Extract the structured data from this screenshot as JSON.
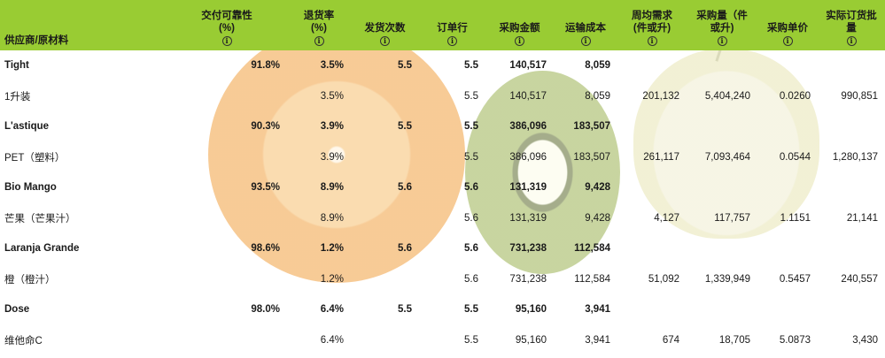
{
  "colors": {
    "header_bg": "#99cc33",
    "text": "#1a1a1a"
  },
  "header": {
    "col0": "供应商/原材料",
    "col1a": "交付可靠性",
    "col1b": "(%)",
    "col2a": "退货率",
    "col2b": "(%)",
    "col3": "发货次数",
    "col4": "订单行",
    "col5": "采购金额",
    "col6": "运输成本",
    "col7a": "周均需求",
    "col7b": "(件或升)",
    "col8a": "采购量（件",
    "col8b": "或升)",
    "col9": "采购单价",
    "col10a": "实际订货批",
    "col10b": "量",
    "info_glyph": "i"
  },
  "rows": [
    {
      "name": "Tight",
      "c1": "91.8%",
      "c2": "3.5%",
      "c3": "5.5",
      "c4": "5.5",
      "c5": "140,517",
      "c6": "8,059",
      "c7": "",
      "c8": "",
      "c9": "",
      "c10": ""
    },
    {
      "name": "1升装",
      "c1": "",
      "c2": "3.5%",
      "c3": "",
      "c4": "5.5",
      "c5": "140,517",
      "c6": "8,059",
      "c7": "201,132",
      "c8": "5,404,240",
      "c9": "0.0260",
      "c10": "990,851"
    },
    {
      "name": "L'astique",
      "c1": "90.3%",
      "c2": "3.9%",
      "c3": "5.5",
      "c4": "5.5",
      "c5": "386,096",
      "c6": "183,507",
      "c7": "",
      "c8": "",
      "c9": "",
      "c10": ""
    },
    {
      "name": "PET（塑料）",
      "c1": "",
      "c2": "3.9%",
      "c3": "",
      "c4": "5.5",
      "c5": "386,096",
      "c6": "183,507",
      "c7": "261,117",
      "c8": "7,093,464",
      "c9": "0.0544",
      "c10": "1,280,137"
    },
    {
      "name": "Bio Mango",
      "c1": "93.5%",
      "c2": "8.9%",
      "c3": "5.6",
      "c4": "5.6",
      "c5": "131,319",
      "c6": "9,428",
      "c7": "",
      "c8": "",
      "c9": "",
      "c10": ""
    },
    {
      "name": "芒果（芒果汁）",
      "c1": "",
      "c2": "8.9%",
      "c3": "",
      "c4": "5.6",
      "c5": "131,319",
      "c6": "9,428",
      "c7": "4,127",
      "c8": "117,757",
      "c9": "1.1151",
      "c10": "21,141"
    },
    {
      "name": "Laranja Grande",
      "c1": "98.6%",
      "c2": "1.2%",
      "c3": "5.6",
      "c4": "5.6",
      "c5": "731,238",
      "c6": "112,584",
      "c7": "",
      "c8": "",
      "c9": "",
      "c10": ""
    },
    {
      "name": "橙（橙汁）",
      "c1": "",
      "c2": "1.2%",
      "c3": "",
      "c4": "5.6",
      "c5": "731,238",
      "c6": "112,584",
      "c7": "51,092",
      "c8": "1,339,949",
      "c9": "0.5457",
      "c10": "240,557"
    },
    {
      "name": "Dose",
      "c1": "98.0%",
      "c2": "6.4%",
      "c3": "5.5",
      "c4": "5.5",
      "c5": "95,160",
      "c6": "3,941",
      "c7": "",
      "c8": "",
      "c9": "",
      "c10": ""
    },
    {
      "name": "维他命C",
      "c1": "",
      "c2": "6.4%",
      "c3": "",
      "c4": "5.5",
      "c5": "95,160",
      "c6": "3,941",
      "c7": "674",
      "c8": "18,705",
      "c9": "5.0873",
      "c10": "3,430"
    }
  ]
}
